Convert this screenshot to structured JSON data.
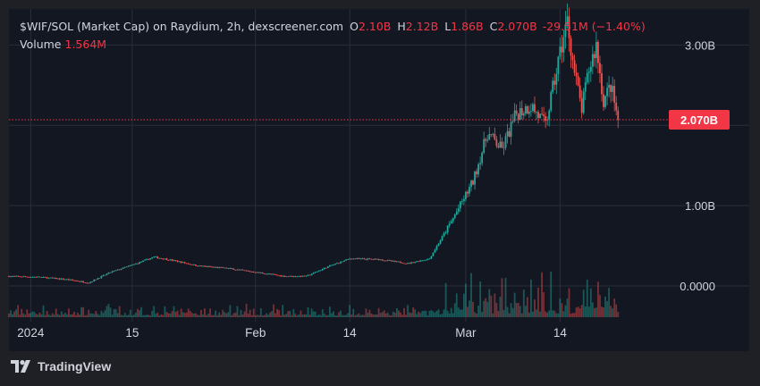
{
  "legend": {
    "symbol": "$WIF/SOL (Market Cap) on Raydium, 2h, dexscreener.com",
    "o_key": "O",
    "o_val": "2.10B",
    "h_key": "H",
    "h_val": "2.12B",
    "l_key": "L",
    "l_val": "1.86B",
    "c_key": "C",
    "c_val": "2.070B",
    "change": "-29.51M (−1.40%)",
    "volume_label": "Volume",
    "volume_val": "1.564M"
  },
  "brand": {
    "name": "TradingView",
    "icon": "tradingview-logo"
  },
  "colors": {
    "up": "#26a69a",
    "down": "#ef5350",
    "price_line": "#f23645",
    "background": "#131722",
    "grid": "#2a2e39",
    "text": "#d1d4dc"
  },
  "chart_data": {
    "type": "candlestick",
    "interval": "2h",
    "title": "$WIF/SOL (Market Cap) on Raydium, 2h, dexscreener.com",
    "y_ticks": [
      {
        "value": 3000000000,
        "label": "3.00B"
      },
      {
        "value": 1000000000,
        "label": "1.00B"
      },
      {
        "value": 0,
        "label": "0.0000"
      }
    ],
    "x_ticks": [
      {
        "date": "2024-01-01",
        "label": "2024"
      },
      {
        "date": "2024-01-15",
        "label": "15"
      },
      {
        "date": "2024-02-01",
        "label": "Feb"
      },
      {
        "date": "2024-02-14",
        "label": "14"
      },
      {
        "date": "2024-03-01",
        "label": "Mar"
      },
      {
        "date": "2024-03-14",
        "label": "14"
      }
    ],
    "ylim": [
      -390000000,
      3450000000
    ],
    "xlim": [
      "2023-12-29",
      "2024-03-29"
    ],
    "last_price": {
      "value": 2070000000,
      "label": "2.070B"
    },
    "grid": true,
    "price_path": [
      {
        "date": "2023-12-29",
        "value": 120000000
      },
      {
        "date": "2024-01-02",
        "value": 110000000
      },
      {
        "date": "2024-01-06",
        "value": 80000000
      },
      {
        "date": "2024-01-09",
        "value": 40000000
      },
      {
        "date": "2024-01-12",
        "value": 170000000
      },
      {
        "date": "2024-01-15",
        "value": 260000000
      },
      {
        "date": "2024-01-18",
        "value": 360000000
      },
      {
        "date": "2024-01-21",
        "value": 310000000
      },
      {
        "date": "2024-01-24",
        "value": 250000000
      },
      {
        "date": "2024-01-28",
        "value": 220000000
      },
      {
        "date": "2024-02-01",
        "value": 170000000
      },
      {
        "date": "2024-02-05",
        "value": 120000000
      },
      {
        "date": "2024-02-08",
        "value": 120000000
      },
      {
        "date": "2024-02-11",
        "value": 240000000
      },
      {
        "date": "2024-02-14",
        "value": 340000000
      },
      {
        "date": "2024-02-18",
        "value": 330000000
      },
      {
        "date": "2024-02-22",
        "value": 280000000
      },
      {
        "date": "2024-02-25",
        "value": 340000000
      },
      {
        "date": "2024-02-28",
        "value": 800000000
      },
      {
        "date": "2024-03-02",
        "value": 1300000000
      },
      {
        "date": "2024-03-04",
        "value": 1900000000
      },
      {
        "date": "2024-03-06",
        "value": 1700000000
      },
      {
        "date": "2024-03-08",
        "value": 2150000000
      },
      {
        "date": "2024-03-10",
        "value": 2250000000
      },
      {
        "date": "2024-03-12",
        "value": 2000000000
      },
      {
        "date": "2024-03-14",
        "value": 2900000000
      },
      {
        "date": "2024-03-15",
        "value": 3300000000
      },
      {
        "date": "2024-03-16",
        "value": 2650000000
      },
      {
        "date": "2024-03-17",
        "value": 2200000000
      },
      {
        "date": "2024-03-18",
        "value": 2700000000
      },
      {
        "date": "2024-03-19",
        "value": 3000000000
      },
      {
        "date": "2024-03-20",
        "value": 2300000000
      },
      {
        "date": "2024-03-21",
        "value": 2500000000
      },
      {
        "date": "2024-03-22",
        "value": 2070000000
      }
    ]
  }
}
